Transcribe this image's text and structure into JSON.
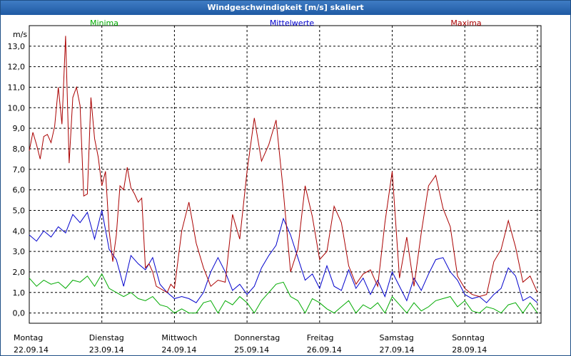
{
  "window": {
    "title": "Windgeschwindigkeit [m/s] skaliert"
  },
  "chart_data": {
    "type": "line",
    "title": "Windgeschwindigkeit [m/s] skaliert",
    "ylabel": "m/s",
    "xlabel": "",
    "ylim": [
      -0.5,
      14.0
    ],
    "xlim": [
      0,
      7.05
    ],
    "grid": true,
    "yticks": [
      "0,0",
      "1,0",
      "2,0",
      "3,0",
      "4,0",
      "5,0",
      "6,0",
      "7,0",
      "8,0",
      "9,0",
      "10,0",
      "11,0",
      "12,0",
      "13,0"
    ],
    "ytick_values": [
      0,
      1,
      2,
      3,
      4,
      5,
      6,
      7,
      8,
      9,
      10,
      11,
      12,
      13
    ],
    "days": [
      {
        "weekday": "Montag",
        "date": "22.09.14"
      },
      {
        "weekday": "Dienstag",
        "date": "23.09.14"
      },
      {
        "weekday": "Mittwoch",
        "date": "24.09.14"
      },
      {
        "weekday": "Donnerstag",
        "date": "25.09.14"
      },
      {
        "weekday": "Freitag",
        "date": "26.09.14"
      },
      {
        "weekday": "Samstag",
        "date": "27.09.14"
      },
      {
        "weekday": "Sonntag",
        "date": "28.09.14"
      }
    ],
    "legend_position": "top",
    "series": [
      {
        "name": "Minima",
        "color": "#00aa00",
        "x": [
          0,
          0.1,
          0.2,
          0.3,
          0.4,
          0.5,
          0.6,
          0.7,
          0.8,
          0.9,
          1.0,
          1.1,
          1.2,
          1.3,
          1.4,
          1.5,
          1.6,
          1.7,
          1.8,
          1.9,
          2.0,
          2.1,
          2.2,
          2.3,
          2.4,
          2.5,
          2.6,
          2.7,
          2.8,
          2.9,
          3.0,
          3.1,
          3.2,
          3.3,
          3.4,
          3.5,
          3.6,
          3.7,
          3.8,
          3.9,
          4.0,
          4.1,
          4.2,
          4.3,
          4.4,
          4.5,
          4.6,
          4.7,
          4.8,
          4.9,
          5.0,
          5.1,
          5.2,
          5.3,
          5.4,
          5.5,
          5.6,
          5.7,
          5.8,
          5.9,
          6.0,
          6.1,
          6.2,
          6.3,
          6.4,
          6.5,
          6.6,
          6.7,
          6.8,
          6.9,
          7.0
        ],
        "values": [
          1.7,
          1.3,
          1.6,
          1.4,
          1.5,
          1.2,
          1.6,
          1.5,
          1.8,
          1.3,
          1.9,
          1.2,
          1.0,
          0.8,
          1.0,
          0.7,
          0.6,
          0.8,
          0.4,
          0.3,
          0.0,
          0.2,
          0.0,
          0.0,
          0.5,
          0.6,
          0.0,
          0.6,
          0.4,
          0.8,
          0.5,
          0.0,
          0.6,
          1.0,
          1.4,
          1.5,
          0.8,
          0.6,
          0.0,
          0.7,
          0.5,
          0.2,
          0.0,
          0.3,
          0.6,
          0.0,
          0.4,
          0.2,
          0.5,
          0.0,
          0.8,
          0.4,
          0.0,
          0.5,
          0.1,
          0.3,
          0.6,
          0.7,
          0.8,
          0.3,
          0.6,
          0.1,
          0.0,
          0.3,
          0.2,
          0.0,
          0.4,
          0.5,
          0.0,
          0.5,
          0.0
        ]
      },
      {
        "name": "Mittelwerte",
        "color": "#0000cc",
        "x": [
          0,
          0.1,
          0.2,
          0.3,
          0.4,
          0.5,
          0.6,
          0.7,
          0.8,
          0.9,
          1.0,
          1.1,
          1.2,
          1.3,
          1.4,
          1.5,
          1.6,
          1.7,
          1.8,
          1.9,
          2.0,
          2.1,
          2.2,
          2.3,
          2.4,
          2.5,
          2.6,
          2.7,
          2.8,
          2.9,
          3.0,
          3.1,
          3.2,
          3.3,
          3.4,
          3.5,
          3.6,
          3.7,
          3.8,
          3.9,
          4.0,
          4.1,
          4.2,
          4.3,
          4.4,
          4.5,
          4.6,
          4.7,
          4.8,
          4.9,
          5.0,
          5.1,
          5.2,
          5.3,
          5.4,
          5.5,
          5.6,
          5.7,
          5.8,
          5.9,
          6.0,
          6.1,
          6.2,
          6.3,
          6.4,
          6.5,
          6.6,
          6.7,
          6.8,
          6.9,
          7.0
        ],
        "values": [
          3.8,
          3.5,
          4.0,
          3.7,
          4.2,
          3.9,
          4.8,
          4.4,
          4.9,
          3.6,
          5.0,
          3.1,
          2.6,
          1.3,
          2.8,
          2.4,
          2.1,
          2.7,
          1.4,
          1.0,
          0.7,
          0.8,
          0.7,
          0.5,
          1.0,
          2.0,
          2.7,
          2.0,
          1.1,
          1.4,
          0.9,
          1.3,
          2.2,
          2.8,
          3.3,
          4.6,
          3.8,
          2.7,
          1.6,
          1.9,
          1.2,
          2.3,
          1.3,
          1.1,
          2.1,
          1.2,
          1.7,
          0.9,
          1.6,
          0.8,
          2.0,
          1.3,
          0.6,
          1.7,
          1.1,
          1.9,
          2.6,
          2.7,
          2.0,
          1.6,
          0.9,
          0.7,
          0.8,
          0.5,
          0.9,
          1.2,
          2.2,
          1.8,
          0.6,
          0.8,
          0.5
        ]
      },
      {
        "name": "Maxima",
        "color": "#aa0000",
        "x": [
          0,
          0.05,
          0.1,
          0.15,
          0.2,
          0.25,
          0.3,
          0.35,
          0.4,
          0.45,
          0.5,
          0.55,
          0.6,
          0.65,
          0.7,
          0.75,
          0.8,
          0.85,
          0.9,
          0.95,
          1.0,
          1.05,
          1.1,
          1.15,
          1.2,
          1.25,
          1.3,
          1.35,
          1.4,
          1.45,
          1.5,
          1.55,
          1.6,
          1.65,
          1.7,
          1.75,
          1.8,
          1.85,
          1.9,
          1.95,
          2.0,
          2.1,
          2.2,
          2.3,
          2.4,
          2.5,
          2.6,
          2.7,
          2.8,
          2.9,
          3.0,
          3.1,
          3.2,
          3.3,
          3.4,
          3.5,
          3.6,
          3.7,
          3.8,
          3.9,
          4.0,
          4.1,
          4.2,
          4.3,
          4.4,
          4.5,
          4.6,
          4.7,
          4.8,
          4.9,
          5.0,
          5.1,
          5.2,
          5.3,
          5.4,
          5.5,
          5.6,
          5.7,
          5.8,
          5.9,
          6.0,
          6.1,
          6.2,
          6.3,
          6.4,
          6.5,
          6.6,
          6.7,
          6.8,
          6.9,
          7.0
        ],
        "values": [
          7.9,
          8.8,
          8.2,
          7.5,
          8.6,
          8.7,
          8.3,
          9.1,
          11.0,
          9.2,
          13.5,
          7.3,
          10.5,
          11.0,
          10.1,
          5.7,
          5.8,
          10.5,
          8.5,
          7.6,
          6.2,
          6.9,
          4.0,
          2.5,
          3.8,
          6.2,
          6.0,
          7.1,
          6.1,
          5.8,
          5.4,
          5.6,
          2.2,
          2.4,
          2.0,
          1.3,
          1.2,
          1.1,
          1.0,
          1.4,
          1.2,
          4.0,
          5.4,
          3.4,
          2.2,
          1.3,
          1.6,
          1.5,
          4.8,
          3.6,
          6.9,
          9.5,
          7.4,
          8.2,
          9.4,
          5.9,
          2.0,
          3.1,
          6.2,
          4.7,
          2.6,
          3.0,
          5.2,
          4.4,
          2.3,
          1.4,
          1.9,
          2.1,
          1.3,
          4.4,
          6.9,
          1.7,
          3.7,
          1.3,
          3.9,
          6.2,
          6.7,
          5.1,
          4.2,
          1.8,
          1.2,
          0.9,
          0.8,
          0.9,
          2.5,
          3.1,
          4.5,
          3.2,
          1.5,
          1.8,
          1.0
        ]
      }
    ]
  }
}
